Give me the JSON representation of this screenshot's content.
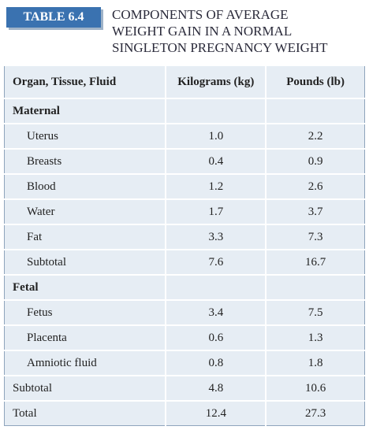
{
  "header": {
    "label": "TABLE 6.4",
    "title_lines": [
      "COMPONENTS OF AVERAGE",
      "WEIGHT GAIN IN A NORMAL",
      "SINGLETON PREGNANCY WEIGHT"
    ]
  },
  "table": {
    "columns": [
      "Organ, Tissue, Fluid",
      "Kilograms (kg)",
      "Pounds (lb)"
    ],
    "rows": [
      [
        "Maternal",
        "",
        ""
      ],
      [
        "Uterus",
        "1.0",
        "2.2"
      ],
      [
        "Breasts",
        "0.4",
        "0.9"
      ],
      [
        "Blood",
        "1.2",
        "2.6"
      ],
      [
        "Water",
        "1.7",
        "3.7"
      ],
      [
        "Fat",
        "3.3",
        "7.3"
      ],
      [
        "Subtotal",
        "7.6",
        "16.7"
      ],
      [
        "Fetal",
        "",
        ""
      ],
      [
        "Fetus",
        "3.4",
        "7.5"
      ],
      [
        "Placenta",
        "0.6",
        "1.3"
      ],
      [
        "Amniotic fluid",
        "0.8",
        "1.8"
      ],
      [
        "Subtotal",
        "4.8",
        "10.6"
      ],
      [
        "Total",
        "12.4",
        "27.3"
      ]
    ]
  }
}
